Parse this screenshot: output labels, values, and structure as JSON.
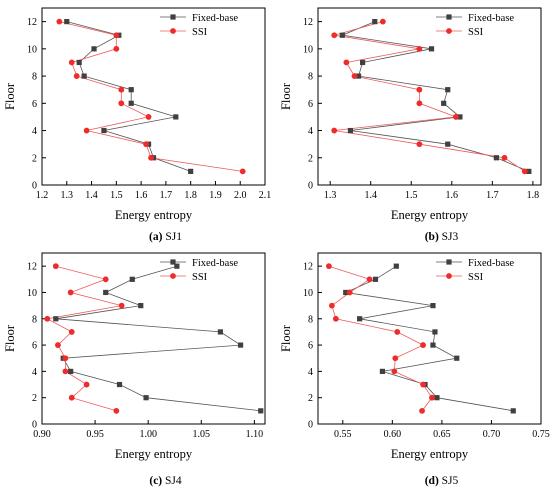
{
  "chart_data": [
    {
      "type": "line",
      "caption_tag": "(a)",
      "caption_name": "SJ1",
      "xlabel": "Energy entropy",
      "ylabel": "Floor",
      "xlim": [
        1.2,
        2.1
      ],
      "ylim": [
        0,
        13
      ],
      "xticks": [
        "1.2",
        "1.3",
        "1.4",
        "1.5",
        "1.6",
        "1.7",
        "1.8",
        "1.9",
        "2.0",
        "2.1"
      ],
      "yticks": [
        "0",
        "2",
        "4",
        "6",
        "8",
        "10",
        "12"
      ],
      "legend_position": "top-right",
      "series": [
        {
          "name": "Fixed-base",
          "color": "#404040",
          "marker": "square",
          "x": [
            1.8,
            1.65,
            1.63,
            1.45,
            1.74,
            1.56,
            1.56,
            1.37,
            1.35,
            1.41,
            1.51,
            1.3
          ],
          "y": [
            1,
            2,
            3,
            4,
            5,
            6,
            7,
            8,
            9,
            10,
            11,
            12
          ]
        },
        {
          "name": "SSI",
          "color": "#ee2c2c",
          "marker": "circle",
          "x": [
            2.01,
            1.64,
            1.62,
            1.38,
            1.63,
            1.52,
            1.52,
            1.34,
            1.32,
            1.5,
            1.5,
            1.27
          ],
          "y": [
            1,
            2,
            3,
            4,
            5,
            6,
            7,
            8,
            9,
            10,
            11,
            12
          ]
        }
      ]
    },
    {
      "type": "line",
      "caption_tag": "(b)",
      "caption_name": "SJ3",
      "xlabel": "Energy entropy",
      "ylabel": "Floor",
      "xlim": [
        1.27,
        1.82
      ],
      "ylim": [
        0,
        13
      ],
      "xticks": [
        "1.3",
        "1.4",
        "1.5",
        "1.6",
        "1.7",
        "1.8"
      ],
      "yticks": [
        "0",
        "2",
        "4",
        "6",
        "8",
        "10",
        "12"
      ],
      "legend_position": "top-right",
      "series": [
        {
          "name": "Fixed-base",
          "color": "#404040",
          "marker": "square",
          "x": [
            1.79,
            1.71,
            1.59,
            1.35,
            1.62,
            1.58,
            1.59,
            1.37,
            1.38,
            1.55,
            1.33,
            1.41
          ],
          "y": [
            1,
            2,
            3,
            4,
            5,
            6,
            7,
            8,
            9,
            10,
            11,
            12
          ]
        },
        {
          "name": "SSI",
          "color": "#ee2c2c",
          "marker": "circle",
          "x": [
            1.78,
            1.73,
            1.52,
            1.31,
            1.61,
            1.52,
            1.52,
            1.36,
            1.34,
            1.52,
            1.31,
            1.43
          ],
          "y": [
            1,
            2,
            3,
            4,
            5,
            6,
            7,
            8,
            9,
            10,
            11,
            12
          ]
        }
      ]
    },
    {
      "type": "line",
      "caption_tag": "(c)",
      "caption_name": "SJ4",
      "xlabel": "Energy entropy",
      "ylabel": "Floor",
      "xlim": [
        0.9,
        1.11
      ],
      "ylim": [
        0,
        13
      ],
      "xticks": [
        "0.90",
        "0.95",
        "1.00",
        "1.05",
        "1.10"
      ],
      "yticks": [
        "0",
        "2",
        "4",
        "6",
        "8",
        "10",
        "12"
      ],
      "legend_position": "top-right",
      "series": [
        {
          "name": "Fixed-base",
          "color": "#404040",
          "marker": "square",
          "x": [
            1.106,
            0.998,
            0.973,
            0.927,
            0.92,
            1.087,
            1.068,
            0.913,
            0.993,
            0.96,
            0.985,
            1.027
          ],
          "y": [
            1,
            2,
            3,
            4,
            5,
            6,
            7,
            8,
            9,
            10,
            11,
            12
          ]
        },
        {
          "name": "SSI",
          "color": "#ee2c2c",
          "marker": "circle",
          "x": [
            0.97,
            0.928,
            0.942,
            0.922,
            0.922,
            0.915,
            0.928,
            0.905,
            0.975,
            0.927,
            0.96,
            0.913
          ],
          "y": [
            1,
            2,
            3,
            4,
            5,
            6,
            7,
            8,
            9,
            10,
            11,
            12
          ]
        }
      ]
    },
    {
      "type": "line",
      "caption_tag": "(d)",
      "caption_name": "SJ5",
      "xlabel": "Energy entropy",
      "ylabel": "Floor",
      "xlim": [
        0.525,
        0.75
      ],
      "ylim": [
        0,
        13
      ],
      "xticks": [
        "0.55",
        "0.60",
        "0.65",
        "0.70",
        "0.75"
      ],
      "yticks": [
        "0",
        "2",
        "4",
        "6",
        "8",
        "10",
        "12"
      ],
      "legend_position": "top-right",
      "series": [
        {
          "name": "Fixed-base",
          "color": "#404040",
          "marker": "square",
          "x": [
            0.722,
            0.645,
            0.633,
            0.59,
            0.665,
            0.641,
            0.643,
            0.567,
            0.641,
            0.553,
            0.583,
            0.604
          ],
          "y": [
            1,
            2,
            3,
            4,
            5,
            6,
            7,
            8,
            9,
            10,
            11,
            12
          ]
        },
        {
          "name": "SSI",
          "color": "#ee2c2c",
          "marker": "circle",
          "x": [
            0.63,
            0.64,
            0.631,
            0.602,
            0.603,
            0.631,
            0.605,
            0.543,
            0.539,
            0.557,
            0.577,
            0.536
          ],
          "y": [
            1,
            2,
            3,
            4,
            5,
            6,
            7,
            8,
            9,
            10,
            11,
            12
          ]
        }
      ]
    }
  ]
}
